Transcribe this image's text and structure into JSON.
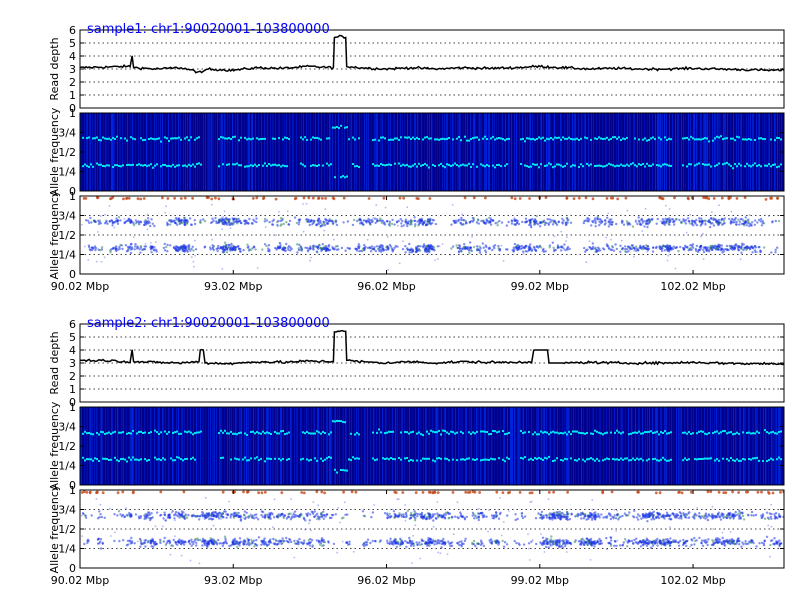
{
  "chart_data": [
    {
      "type": "line",
      "title": "sample1: chr1:90020001-103800000",
      "xlabel": "",
      "ylabel": "Read depth",
      "xlim": [
        90.02,
        103.8
      ],
      "ylim": [
        0,
        6
      ],
      "yticks": [
        "0",
        "1",
        "2",
        "3",
        "4",
        "5",
        "6"
      ],
      "xticks": [],
      "grid": true,
      "series": [
        {
          "x": [
            90.02,
            90.5,
            91.0,
            91.04,
            91.1,
            91.5,
            92.0,
            92.4,
            92.5,
            93.0,
            93.5,
            94.0,
            94.5,
            94.98,
            95.0,
            95.1,
            95.22,
            95.24,
            95.5,
            96.0,
            96.5,
            97.0,
            97.5,
            98.0,
            98.5,
            99.0,
            99.5,
            100.0,
            100.5,
            101.0,
            101.5,
            102.0,
            102.5,
            103.0,
            103.5,
            103.8
          ],
          "y": [
            3.1,
            3.15,
            3.2,
            4.0,
            3.1,
            3.0,
            3.1,
            2.7,
            3.0,
            2.9,
            3.1,
            3.05,
            3.2,
            3.1,
            5.4,
            5.5,
            5.45,
            3.2,
            3.1,
            3.0,
            3.1,
            3.0,
            3.1,
            3.05,
            3.1,
            3.2,
            3.1,
            3.0,
            3.05,
            3.0,
            3.0,
            3.05,
            3.0,
            2.95,
            2.9,
            2.9
          ]
        }
      ]
    },
    {
      "type": "heatmap",
      "title": "",
      "xlabel": "",
      "ylabel": "Allele frequency",
      "xlim": [
        90.02,
        103.8
      ],
      "ylim": [
        0,
        1
      ],
      "yticks": [
        "0",
        "1/4",
        "1/2",
        "3/4",
        "1"
      ],
      "xticks": [],
      "grid": false,
      "series": [
        {
          "name": "",
          "values": [
            0.33,
            0.67
          ]
        }
      ]
    },
    {
      "type": "scatter",
      "title": "",
      "xlabel": "",
      "ylabel": "Allele frequency",
      "xlim": [
        90.02,
        103.8
      ],
      "ylim": [
        0,
        1
      ],
      "yticks": [
        "0",
        "1/4",
        "1/2",
        "3/4",
        "1"
      ],
      "xticks": [
        "90.02 Mbp",
        "93.02 Mbp",
        "96.02 Mbp",
        "99.02 Mbp",
        "102.02 Mbp"
      ],
      "grid": true,
      "series": [
        {
          "name": "",
          "values": [
            0.33,
            0.67,
            0.97
          ]
        }
      ]
    },
    {
      "type": "line",
      "title": "sample2: chr1:90020001-103800000",
      "xlabel": "",
      "ylabel": "Read depth",
      "xlim": [
        90.02,
        103.8
      ],
      "ylim": [
        0,
        6
      ],
      "yticks": [
        "0",
        "1",
        "2",
        "3",
        "4",
        "5",
        "6"
      ],
      "xticks": [],
      "grid": true,
      "series": [
        {
          "x": [
            90.02,
            90.5,
            91.0,
            91.04,
            91.1,
            91.5,
            92.0,
            92.35,
            92.4,
            92.5,
            93.0,
            93.5,
            94.0,
            94.5,
            94.98,
            95.0,
            95.1,
            95.22,
            95.24,
            95.5,
            96.0,
            96.5,
            97.0,
            97.5,
            98.0,
            98.5,
            98.86,
            98.9,
            99.5,
            100.0,
            100.5,
            101.0,
            101.5,
            102.0,
            102.5,
            103.0,
            103.5,
            103.8
          ],
          "y": [
            3.2,
            3.2,
            3.1,
            4.0,
            3.1,
            3.05,
            3.0,
            3.1,
            4.0,
            3.0,
            2.95,
            3.1,
            3.05,
            3.15,
            3.1,
            5.4,
            5.5,
            5.45,
            3.2,
            3.1,
            3.0,
            3.1,
            3.0,
            3.1,
            3.05,
            3.05,
            3.1,
            4.0,
            3.0,
            3.05,
            3.0,
            3.0,
            3.0,
            3.05,
            3.0,
            2.95,
            2.95,
            2.9
          ]
        }
      ]
    },
    {
      "type": "heatmap",
      "title": "",
      "xlabel": "",
      "ylabel": "Allele frequency",
      "xlim": [
        90.02,
        103.8
      ],
      "ylim": [
        0,
        1
      ],
      "yticks": [
        "0",
        "1/4",
        "1/2",
        "3/4",
        "1"
      ],
      "xticks": [],
      "grid": false,
      "series": [
        {
          "name": "",
          "values": [
            0.33,
            0.67
          ]
        }
      ]
    },
    {
      "type": "scatter",
      "title": "",
      "xlabel": "",
      "ylabel": "Allele frequency",
      "xlim": [
        90.02,
        103.8
      ],
      "ylim": [
        0,
        1
      ],
      "yticks": [
        "0",
        "1/4",
        "1/2",
        "3/4",
        "1"
      ],
      "xticks": [
        "90.02 Mbp",
        "93.02 Mbp",
        "96.02 Mbp",
        "99.02 Mbp",
        "102.02 Mbp"
      ],
      "grid": true,
      "series": [
        {
          "name": "",
          "values": [
            0.33,
            0.67,
            0.97
          ]
        }
      ]
    }
  ],
  "colors": {
    "depth_line": "#000000",
    "title": "#0000ff",
    "heatmap_background": "#00008b",
    "heatmap_stripe": "#0033ff",
    "heatmap_band": "#00ffff",
    "scatter_main": "#1a33e6",
    "scatter_minor": "#2e8b57",
    "scatter_top": "#c84614"
  }
}
